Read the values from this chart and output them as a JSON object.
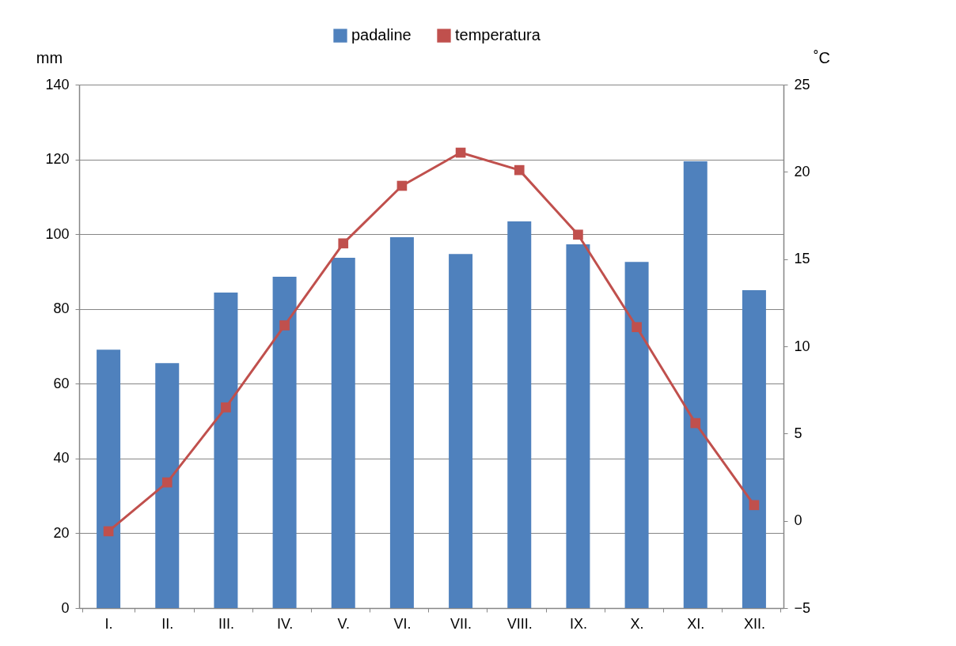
{
  "chart_data": {
    "type": "bar",
    "categories": [
      "I.",
      "II.",
      "III.",
      "IV.",
      "V.",
      "VI.",
      "VII.",
      "VIII.",
      "IX.",
      "X.",
      "XI.",
      "XII."
    ],
    "series": [
      {
        "name": "padaline",
        "color": "#4f81bd",
        "values": [
          69.1,
          65.5,
          84.4,
          88.6,
          93.7,
          99.2,
          94.7,
          103.4,
          97.3,
          92.6,
          119.5,
          85.0
        ]
      },
      {
        "name": "temperatura",
        "type": "line",
        "axis": "y2",
        "color": "#c0504d",
        "values": [
          -0.6,
          2.2,
          6.5,
          11.2,
          15.9,
          19.2,
          21.1,
          20.1,
          16.4,
          11.1,
          5.6,
          0.9
        ]
      }
    ],
    "ylabel": "mm",
    "y2label": "˚C",
    "ylim": [
      0,
      140
    ],
    "yticks": [
      0,
      20,
      40,
      60,
      80,
      100,
      120,
      140
    ],
    "y2lim": [
      -5,
      25
    ],
    "y2ticks": [
      -5,
      0,
      5,
      10,
      15,
      20,
      25
    ],
    "grid": "y",
    "legend": "top",
    "marker": "square"
  }
}
